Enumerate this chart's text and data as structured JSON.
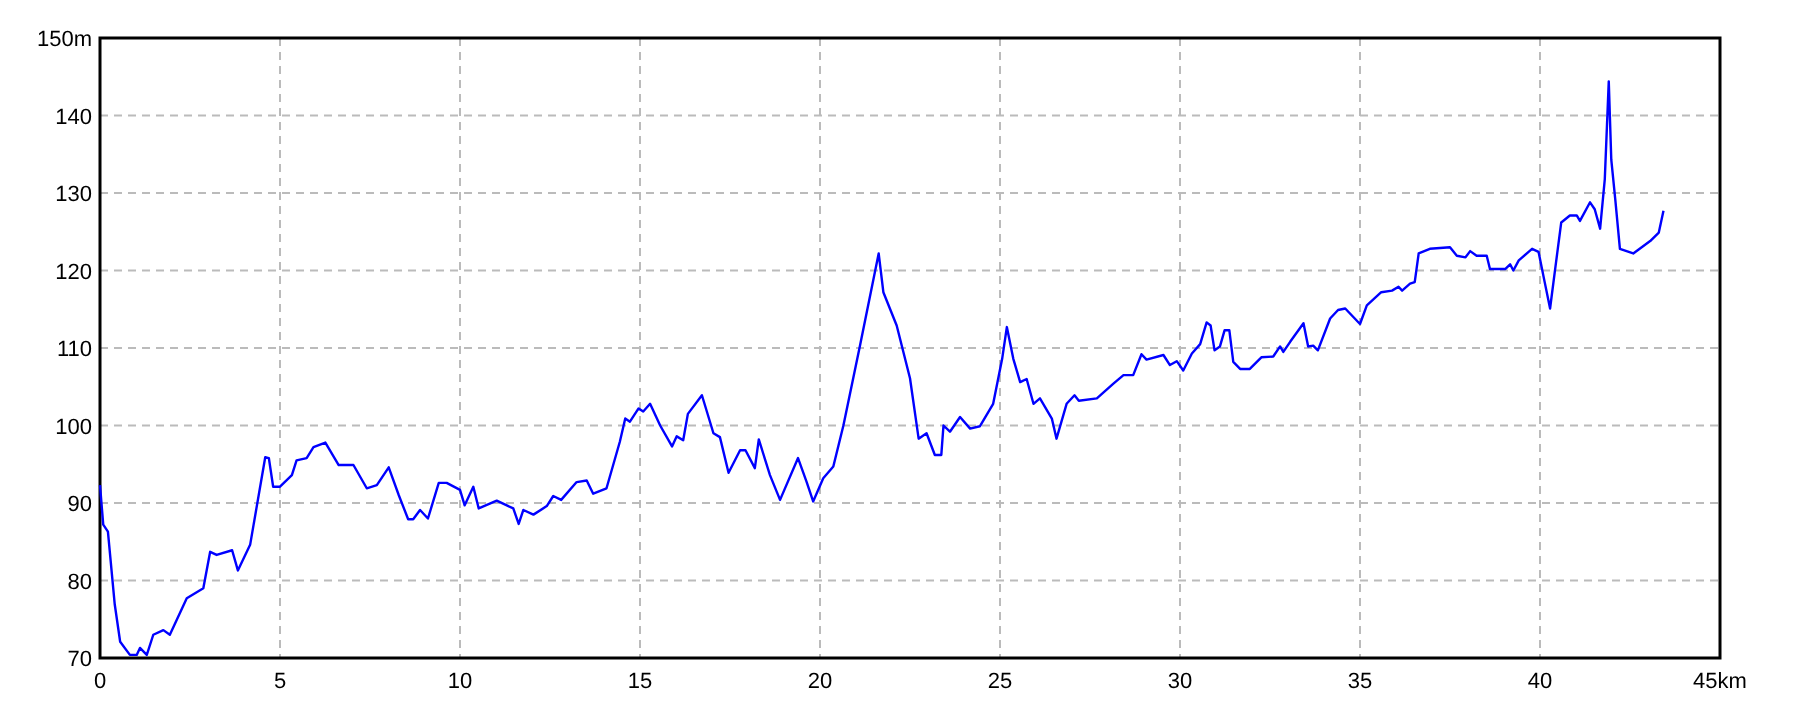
{
  "chart_data": {
    "type": "line",
    "xlim": [
      0,
      45
    ],
    "ylim": [
      70,
      150
    ],
    "xticks": [
      0,
      5,
      10,
      15,
      20,
      25,
      30,
      35,
      40,
      {
        "value": 45,
        "label": "45km"
      }
    ],
    "yticks": [
      70,
      80,
      90,
      100,
      110,
      120,
      130,
      140,
      {
        "value": 150,
        "label": "150m"
      }
    ],
    "grid": true,
    "marker": "none",
    "line_style": "solid",
    "series": [
      {
        "color": "#0000ff",
        "x": [
          0,
          0.09,
          0.22,
          0.41,
          0.56,
          0.83,
          1.02,
          1.11,
          1.3,
          1.48,
          1.76,
          1.94,
          2.41,
          2.87,
          3.06,
          3.24,
          3.67,
          3.83,
          4.17,
          4.59,
          4.69,
          4.81,
          5,
          5.33,
          5.46,
          5.74,
          5.93,
          6.26,
          6.63,
          7.04,
          7.41,
          7.69,
          8.02,
          8.3,
          8.56,
          8.7,
          8.89,
          9.11,
          9.41,
          9.63,
          10,
          10.13,
          10.37,
          10.52,
          11.02,
          11.48,
          11.63,
          11.76,
          12.04,
          12.41,
          12.59,
          12.81,
          13.24,
          13.52,
          13.7,
          14.07,
          14.44,
          14.59,
          14.72,
          14.96,
          15.09,
          15.28,
          15.56,
          15.89,
          16.02,
          16.2,
          16.33,
          16.72,
          17.04,
          17.22,
          17.46,
          17.78,
          17.93,
          18.19,
          18.3,
          18.61,
          18.89,
          19.39,
          19.63,
          19.81,
          20.09,
          20.37,
          20.65,
          21.11,
          21.63,
          21.76,
          22.13,
          22.5,
          22.74,
          22.96,
          23.19,
          23.37,
          23.43,
          23.61,
          23.89,
          24.17,
          24.44,
          24.81,
          25.06,
          25.19,
          25.37,
          25.56,
          25.74,
          25.93,
          26.11,
          26.44,
          26.57,
          26.85,
          27.07,
          27.19,
          27.69,
          28.15,
          28.43,
          28.7,
          28.93,
          29.07,
          29.54,
          29.72,
          29.91,
          30.09,
          30.33,
          30.56,
          30.74,
          30.85,
          30.96,
          31.11,
          31.24,
          31.37,
          31.48,
          31.67,
          31.94,
          32.26,
          32.59,
          32.78,
          32.87,
          33.06,
          33.43,
          33.56,
          33.7,
          33.83,
          34.17,
          34.39,
          34.59,
          35,
          35.19,
          35.59,
          35.89,
          36.07,
          36.17,
          36.39,
          36.52,
          36.63,
          36.94,
          37.5,
          37.69,
          37.93,
          38.06,
          38.24,
          38.52,
          38.61,
          39.04,
          39.17,
          39.26,
          39.41,
          39.78,
          39.96,
          40.13,
          40.28,
          40.41,
          40.59,
          40.83,
          41.02,
          41.11,
          41.39,
          41.52,
          41.67,
          41.8,
          41.91,
          41.98,
          42.09,
          42.22,
          42.59,
          43.06,
          43.3,
          43.43
        ],
        "values": [
          92.3,
          87.2,
          86.3,
          76.9,
          72.1,
          70.4,
          70.4,
          71.3,
          70.4,
          73,
          73.6,
          73,
          77.7,
          79,
          83.7,
          83.3,
          83.9,
          81.3,
          84.6,
          95.9,
          95.8,
          92.1,
          92.1,
          93.6,
          95.5,
          95.8,
          97.2,
          97.8,
          94.9,
          94.9,
          91.9,
          92.3,
          94.6,
          91,
          87.9,
          87.9,
          89.1,
          88,
          92.6,
          92.6,
          91.7,
          89.7,
          92.1,
          89.3,
          90.3,
          89.3,
          87.3,
          89.1,
          88.5,
          89.6,
          90.9,
          90.4,
          92.7,
          92.9,
          91.2,
          91.9,
          97.9,
          100.9,
          100.5,
          102.2,
          101.8,
          102.8,
          100,
          97.3,
          98.6,
          98.1,
          101.5,
          103.9,
          99,
          98.5,
          93.9,
          96.8,
          96.8,
          94.5,
          98.2,
          93.6,
          90.4,
          95.8,
          92.7,
          90.2,
          93.2,
          94.7,
          100,
          110.3,
          122.2,
          117.2,
          112.9,
          106.1,
          98.3,
          99,
          96.2,
          96.2,
          100,
          99.2,
          101.1,
          99.6,
          99.9,
          102.8,
          108.6,
          112.7,
          108.6,
          105.6,
          106,
          102.8,
          103.5,
          100.9,
          98.3,
          102.8,
          103.9,
          103.2,
          103.5,
          105.4,
          106.5,
          106.5,
          109.2,
          108.5,
          109.1,
          107.8,
          108.3,
          107.1,
          109.3,
          110.5,
          113.3,
          112.9,
          109.7,
          110.2,
          112.3,
          112.3,
          108.2,
          107.3,
          107.3,
          108.8,
          108.9,
          110.2,
          109.5,
          110.8,
          113.2,
          110.2,
          110.3,
          109.7,
          113.8,
          114.9,
          115.1,
          113.1,
          115.5,
          117.2,
          117.4,
          117.9,
          117.4,
          118.3,
          118.5,
          122.2,
          122.8,
          123,
          121.9,
          121.7,
          122.5,
          121.9,
          121.9,
          120.2,
          120.2,
          120.8,
          120,
          121.3,
          122.8,
          122.4,
          118.5,
          115.1,
          119.8,
          126.2,
          127.1,
          127.1,
          126.4,
          128.8,
          127.9,
          125.4,
          131.8,
          144.4,
          134.3,
          129.2,
          122.8,
          122.2,
          123.8,
          124.9,
          127.7
        ]
      }
    ]
  }
}
